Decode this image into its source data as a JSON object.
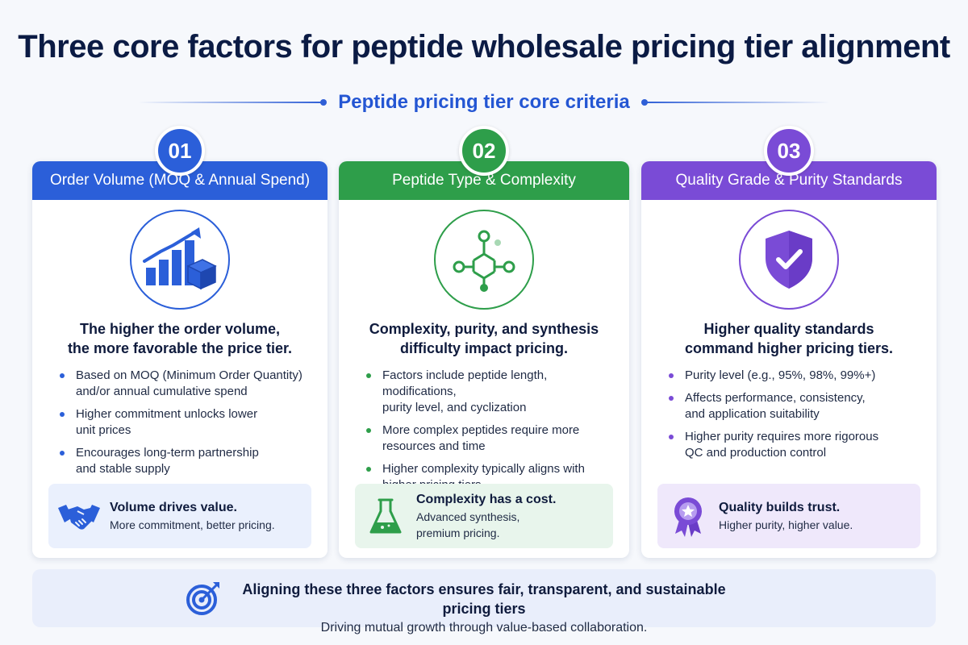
{
  "title": "Three core factors for peptide wholesale pricing tier alignment",
  "subtitle": "Peptide pricing tier core criteria",
  "colors": {
    "blue": "#2b5fd9",
    "green": "#2e9e4a",
    "purple": "#7a4bd6",
    "navy": "#0b1b44"
  },
  "cards": [
    {
      "number": "01",
      "header": "Order Volume (MOQ & Annual Spend)",
      "icon": "growth-chart-boxes-icon",
      "headline_line1": "The higher the order volume,",
      "headline_line2": "the more favorable the price tier.",
      "bullets": [
        {
          "line1": "Based on MOQ (Minimum Order Quantity)",
          "line2": "and/or annual cumulative spend"
        },
        {
          "line1": "Higher commitment unlocks lower",
          "line2": "unit prices"
        },
        {
          "line1": "Encourages long-term partnership",
          "line2": "and stable supply"
        }
      ],
      "callout_icon": "handshake-icon",
      "callout_title": "Volume drives value.",
      "callout_body_line1": "More commitment, better pricing.",
      "callout_body_line2": ""
    },
    {
      "number": "02",
      "header": "Peptide Type & Complexity",
      "icon": "molecule-icon",
      "headline_line1": "Complexity, purity, and synthesis",
      "headline_line2": "difficulty impact pricing.",
      "bullets": [
        {
          "line1": "Factors include peptide length, modifications,",
          "line2": "purity level, and cyclization"
        },
        {
          "line1": "More complex peptides require more",
          "line2": "resources and time"
        },
        {
          "line1": "Higher complexity typically aligns with",
          "line2": "higher pricing tiers"
        }
      ],
      "callout_icon": "flask-icon",
      "callout_title": "Complexity has a cost.",
      "callout_body_line1": "Advanced synthesis,",
      "callout_body_line2": "premium pricing."
    },
    {
      "number": "03",
      "header": "Quality Grade & Purity Standards",
      "icon": "shield-check-icon",
      "headline_line1": "Higher quality standards",
      "headline_line2": "command higher pricing tiers.",
      "bullets": [
        {
          "line1": "Purity level (e.g., 95%, 98%, 99%+)",
          "line2": ""
        },
        {
          "line1": "Affects performance, consistency,",
          "line2": "and application suitability"
        },
        {
          "line1": "Higher purity requires more rigorous",
          "line2": "QC and production control"
        }
      ],
      "callout_icon": "award-ribbon-icon",
      "callout_title": "Quality builds trust.",
      "callout_body_line1": "Higher purity, higher value.",
      "callout_body_line2": ""
    }
  ],
  "footer": {
    "icon": "target-icon",
    "title": "Aligning these three factors ensures fair, transparent, and sustainable pricing tiers",
    "body": "Driving mutual growth through value-based collaboration."
  }
}
